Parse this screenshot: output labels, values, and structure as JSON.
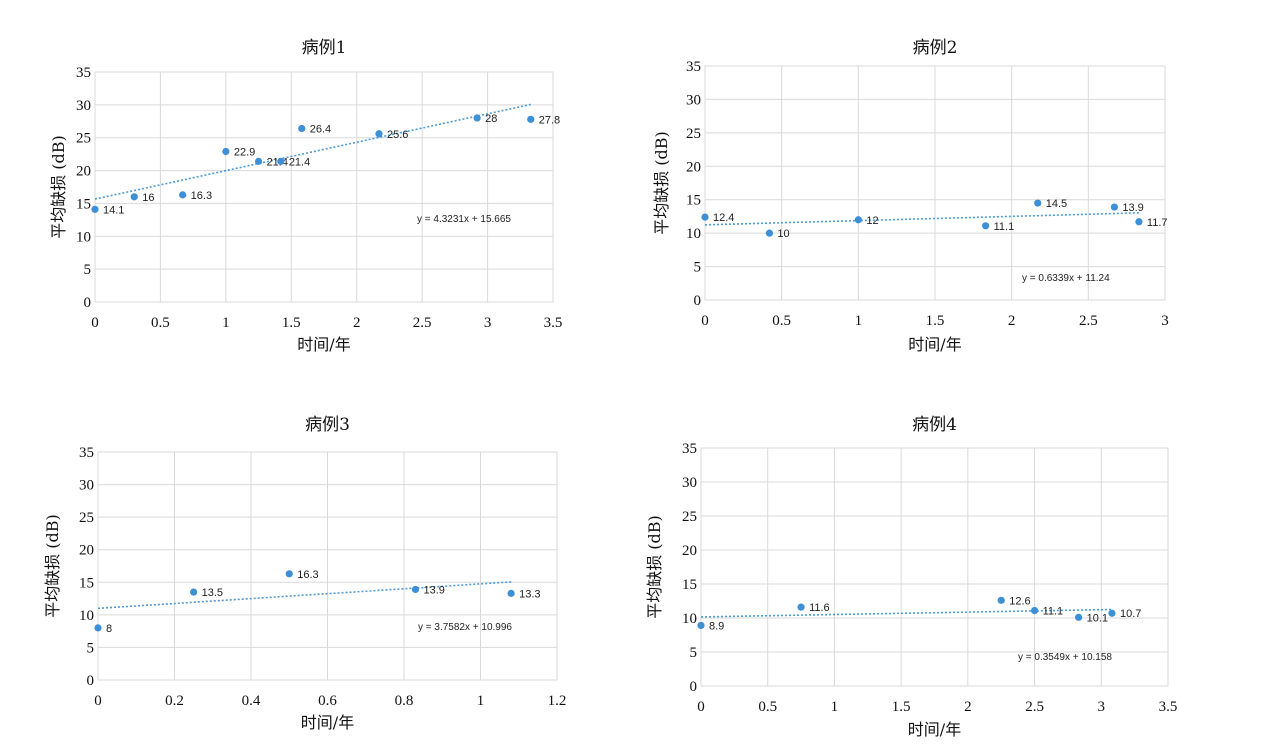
{
  "colors": {
    "point": "#3d8fd6",
    "trendline": "#4a9bd8",
    "grid": "#d9d9d9"
  },
  "chart_data": [
    {
      "type": "scatter",
      "title": "病例1",
      "xlabel": "时间/年",
      "ylabel": "平均缺损 (dB)",
      "xlim": [
        0,
        3.5
      ],
      "xstep": 0.5,
      "ylim": [
        0,
        35
      ],
      "ystep": 5,
      "xticks": [
        "0",
        "0.5",
        "1",
        "1.5",
        "2",
        "2.5",
        "3",
        "3.5"
      ],
      "yticks": [
        "0",
        "5",
        "10",
        "15",
        "20",
        "25",
        "30",
        "35"
      ],
      "grid": true,
      "points": [
        {
          "x": 0.0,
          "y": 14.1,
          "label": "14.1"
        },
        {
          "x": 0.3,
          "y": 16,
          "label": "16"
        },
        {
          "x": 0.67,
          "y": 16.3,
          "label": "16.3"
        },
        {
          "x": 1.0,
          "y": 22.9,
          "label": "22.9"
        },
        {
          "x": 1.25,
          "y": 21.4,
          "label": "21.4"
        },
        {
          "x": 1.42,
          "y": 21.4,
          "label": "21.4"
        },
        {
          "x": 1.58,
          "y": 26.4,
          "label": "26.4"
        },
        {
          "x": 2.17,
          "y": 25.6,
          "label": "25.6"
        },
        {
          "x": 2.92,
          "y": 28,
          "label": "28"
        },
        {
          "x": 3.33,
          "y": 27.8,
          "label": "27.8"
        }
      ],
      "trendline": {
        "slope": 4.3231,
        "intercept": 15.665,
        "x_range": [
          0,
          3.33
        ],
        "equation": "y = 4.3231x + 15.665"
      }
    },
    {
      "type": "scatter",
      "title": "病例2",
      "xlabel": "时间/年",
      "ylabel": "平均缺损 (dB)",
      "xlim": [
        0,
        3
      ],
      "xstep": 0.5,
      "ylim": [
        0,
        35
      ],
      "ystep": 5,
      "xticks": [
        "0",
        "0.5",
        "1",
        "1.5",
        "2",
        "2.5",
        "3"
      ],
      "yticks": [
        "0",
        "5",
        "10",
        "15",
        "20",
        "25",
        "30",
        "35"
      ],
      "grid": true,
      "points": [
        {
          "x": 0.0,
          "y": 12.4,
          "label": "12.4"
        },
        {
          "x": 0.42,
          "y": 10,
          "label": "10"
        },
        {
          "x": 1.0,
          "y": 12,
          "label": "12"
        },
        {
          "x": 1.83,
          "y": 11.1,
          "label": "11.1"
        },
        {
          "x": 2.17,
          "y": 14.5,
          "label": "14.5"
        },
        {
          "x": 2.67,
          "y": 13.9,
          "label": "13.9"
        },
        {
          "x": 2.83,
          "y": 11.7,
          "label": "11.7"
        }
      ],
      "trendline": {
        "slope": 0.6339,
        "intercept": 11.24,
        "x_range": [
          0,
          2.83
        ],
        "equation": "y = 0.6339x + 11.24"
      }
    },
    {
      "type": "scatter",
      "title": "病例3",
      "xlabel": "时间/年",
      "ylabel": "平均缺损 (dB)",
      "xlim": [
        0,
        1.2
      ],
      "xstep": 0.2,
      "ylim": [
        0,
        35
      ],
      "ystep": 5,
      "xticks": [
        "0",
        "0.2",
        "0.4",
        "0.6",
        "0.8",
        "1",
        "1.2"
      ],
      "yticks": [
        "0",
        "5",
        "10",
        "15",
        "20",
        "25",
        "30",
        "35"
      ],
      "grid": true,
      "points": [
        {
          "x": 0.0,
          "y": 8,
          "label": "8"
        },
        {
          "x": 0.25,
          "y": 13.5,
          "label": "13.5"
        },
        {
          "x": 0.5,
          "y": 16.3,
          "label": "16.3"
        },
        {
          "x": 0.83,
          "y": 13.9,
          "label": "13.9"
        },
        {
          "x": 1.08,
          "y": 13.3,
          "label": "13.3"
        }
      ],
      "trendline": {
        "slope": 3.7582,
        "intercept": 10.996,
        "x_range": [
          0,
          1.08
        ],
        "equation": "y = 3.7582x + 10.996"
      }
    },
    {
      "type": "scatter",
      "title": "病例4",
      "xlabel": "时间/年",
      "ylabel": "平均缺损 (dB)",
      "xlim": [
        0,
        3.5
      ],
      "xstep": 0.5,
      "ylim": [
        0,
        35
      ],
      "ystep": 5,
      "xticks": [
        "0",
        "0.5",
        "1",
        "1.5",
        "2",
        "2.5",
        "3",
        "3.5"
      ],
      "yticks": [
        "0",
        "5",
        "10",
        "15",
        "20",
        "25",
        "30",
        "35"
      ],
      "grid": true,
      "points": [
        {
          "x": 0.0,
          "y": 8.9,
          "label": "8.9"
        },
        {
          "x": 0.75,
          "y": 11.6,
          "label": "11.6"
        },
        {
          "x": 2.25,
          "y": 12.6,
          "label": "12.6"
        },
        {
          "x": 2.5,
          "y": 11.1,
          "label": "11.1"
        },
        {
          "x": 2.83,
          "y": 10.1,
          "label": "10.1"
        },
        {
          "x": 3.08,
          "y": 10.7,
          "label": "10.7"
        }
      ],
      "trendline": {
        "slope": 0.3549,
        "intercept": 10.158,
        "x_range": [
          0,
          3.08
        ],
        "equation": "y = 0.3549x + 10.158"
      }
    }
  ]
}
